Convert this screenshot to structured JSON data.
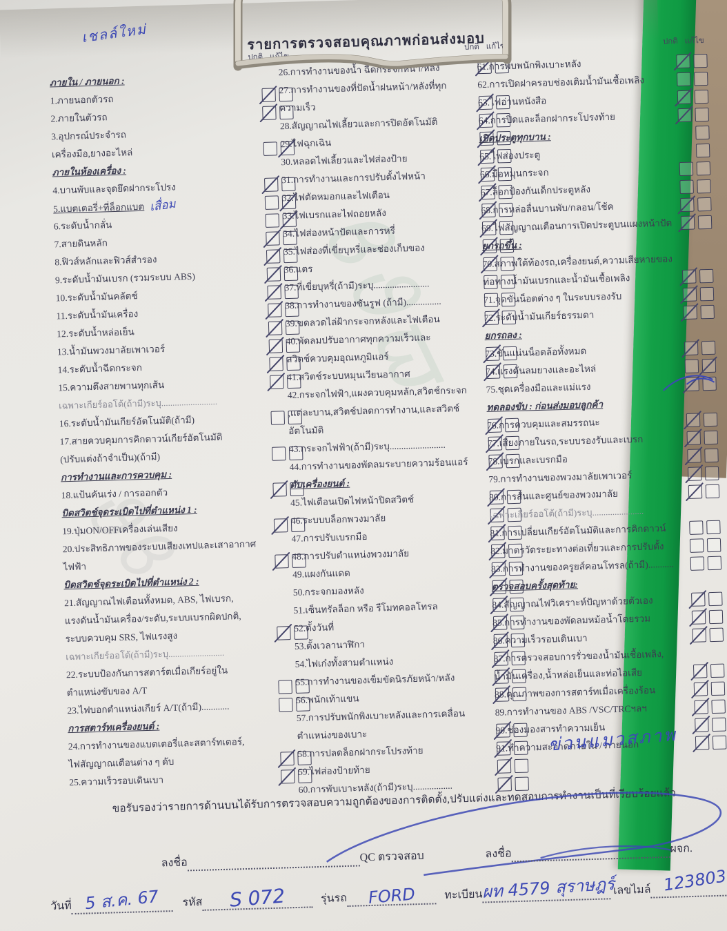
{
  "header": {
    "title": "รายการตรวจสอบคุณภาพก่อนส่งมอบ",
    "check_labels": {
      "normal": "ปกติ",
      "fix": "แก้ไข"
    }
  },
  "annotations": {
    "top_left": "เชลล์ใหม่",
    "item5_note": "เสื่อม",
    "right_note": "ข่วนแมวสภาพ"
  },
  "columns": [
    {
      "entries": [
        {
          "sec": "ภายใน / ภายนอก :"
        },
        {
          "lines": [
            "1.ภายนอกตัวรถ"
          ],
          "check": "n"
        },
        {
          "lines": [
            "2.ภายในตัวรถ"
          ],
          "check": "n"
        },
        {
          "lines": [
            "3.อุปกรณ์ประจำรถ",
            "เครื่องมือ,ยางอะไหล่"
          ],
          "check": "f"
        },
        {
          "sec": "ภายในห้องเครื่อง :"
        },
        {
          "lines": [
            "4.บานพับและจุดยึดฝากระโปรง"
          ],
          "check": "n"
        },
        {
          "lines": [
            "5.แบตเตอรี่+ที่ล็อกแบต"
          ],
          "check": "f",
          "u": true,
          "note": "เสื่อม"
        },
        {
          "lines": [
            "6.ระดับน้ำกลั่น"
          ],
          "check": "f"
        },
        {
          "lines": [
            "7.สายดินหลัก"
          ],
          "check": "n"
        },
        {
          "lines": [
            "8.ฟิวส์หลักและฟิวส์สำรอง"
          ],
          "check": "n"
        },
        {
          "lines": [
            "9.ระดับน้ำมันเบรก (รวมระบบ ABS)"
          ],
          "check": "n"
        },
        {
          "lines": [
            "10.ระดับน้ำมันคลัตช์"
          ],
          "check": "n"
        },
        {
          "lines": [
            "11.ระดับน้ำมันเครื่อง"
          ],
          "check": "n"
        },
        {
          "lines": [
            "12.ระดับน้ำหล่อเย็น"
          ],
          "check": "n"
        },
        {
          "lines": [
            "13.น้ำมันพวงมาลัยเพาเวอร์"
          ],
          "check": "n"
        },
        {
          "lines": [
            "14.ระดับน้ำฉีดกระจก"
          ],
          "check": "n"
        },
        {
          "lines": [
            "15.ความตึงสายพานทุกเส้น"
          ],
          "check": "n"
        },
        {
          "gray": "เฉพาะเกียร์ออโต้(ถ้ามี)ระบุ........................."
        },
        {
          "lines": [
            "16.ระดับน้ำมันเกียร์อัตโนมัติ(ถ้ามี)"
          ],
          "check": "e"
        },
        {
          "lines": [
            "17.สายควบคุมการคิกดาวน์เกียร์อัตโนมัติ",
            "(ปรับแต่งถ้าจำเป็น)(ถ้ามี)"
          ],
          "check": "e"
        },
        {
          "sec": "การทำงานและการควบคุม :"
        },
        {
          "lines": [
            "18.แป้นคันเร่ง / การออกตัว"
          ],
          "check": "n"
        },
        {
          "sec": "บิดสวิตช์จุดระเบิดไปที่ตำแหน่ง 1 :"
        },
        {
          "lines": [
            "19.ปุ่มON/OFFเครื่องเล่นเสียง"
          ],
          "check": "n"
        },
        {
          "lines": [
            "20.ประสิทธิภาพของระบบเสียงเทปและเสาอากาศ",
            "ไฟฟ้า"
          ],
          "check": "n"
        },
        {
          "sec": "บิดสวิตช์จุดระเบิดไปที่ตำแหน่ง 2 :"
        },
        {
          "lines": [
            "21.สัญญาณไฟเตือนทั้งหมด, ABS, ไฟเบรก,",
            "แรงดันน้ำมันเครื่อง/ระดับ,ระบบเบรกผิดปกติ,",
            "ระบบควบคุม SRS, ไฟแรงสูง"
          ],
          "check": "n"
        },
        {
          "gray": "เฉพาะเกียร์ออโต้(ถ้ามี)ระบุ........................."
        },
        {
          "lines": [
            "22.ระบบป้องกันการสตาร์ตเมื่อเกียร์อยู่ใน",
            "ตำแหน่งขับของ A/T"
          ],
          "check": "e"
        },
        {
          "lines": [
            "23.ไฟบอกตำแหน่งเกียร์ A/T(ถ้ามี)............"
          ],
          "check": "e"
        },
        {
          "sec": "การสตาร์ทเครื่องยนต์ :"
        },
        {
          "lines": [
            "24.การทำงานของแบตเตอรี่และสตาร์ทเตอร์,",
            "ไฟสัญญาณเตือนต่าง ๆ ดับ"
          ],
          "check": "n"
        },
        {
          "lines": [
            "25.ความเร็วรอบเดินเบา"
          ],
          "check": "n"
        }
      ]
    },
    {
      "entries": [
        {
          "lines": [
            "26.การทำงานของน้ำ ฉีดกระจกหน้า/หลัง"
          ],
          "check": "n"
        },
        {
          "lines": [
            "27.การทำงานของที่ปัดน้ำฝนหน้า/หลังที่ทุก",
            "ความเร็ว"
          ],
          "check": "n"
        },
        {
          "lines": [
            "28.สัญญาณไฟเลี้ยวและการปิดอัตโนมัติ"
          ],
          "check": "n"
        },
        {
          "lines": [
            "29.ไฟฉุกเฉิน"
          ],
          "check": "n"
        },
        {
          "lines": [
            "30.หลอดไฟเลี้ยวและไฟส่องป้าย"
          ],
          "check": "n"
        },
        {
          "lines": [
            "31.การทำงานและการปรับตั้งไฟหน้า"
          ],
          "check": "n"
        },
        {
          "lines": [
            "32.ไฟตัดหมอกและไฟเตือน"
          ],
          "check": "n"
        },
        {
          "lines": [
            "33.ไฟเบรกและไฟถอยหลัง"
          ],
          "check": "n"
        },
        {
          "lines": [
            "34.ไฟส่องหน้าปัดและการหรี่"
          ],
          "check": "n"
        },
        {
          "lines": [
            "35.ไฟส่องที่เขี่ยบุหรี่และช่องเก็บของ"
          ],
          "check": "n"
        },
        {
          "lines": [
            "36.แตร"
          ],
          "check": "n"
        },
        {
          "lines": [
            "37.ที่เขี่ยบุหรี่(ถ้ามี)ระบุ........................"
          ],
          "check": "e"
        },
        {
          "lines": [
            "38.การทำงานของซันรูฟ (ถ้ามี)..............."
          ],
          "check": "e"
        },
        {
          "lines": [
            "39.ขดลวดไล่ฝ้ากระจกหลังและไฟเตือน"
          ],
          "check": "n"
        },
        {
          "lines": [
            "40.พัดลมปรับอากาศทุกความเร็วและ",
            "สวิตช์ควบคุมอุณหภูมิแอร์"
          ],
          "check": "n"
        },
        {
          "lines": [
            "41.สวิตช์ระบบหมุนเวียนอากาศ"
          ],
          "check": "n"
        },
        {
          "lines": [
            "42.กระจกไฟฟ้า,แผงควบคุมหลัก,สวิตช์กระจก",
            ",แต่ละบาน,สวิตช์ปลดการทำงาน,และสวิตช์",
            "อัตโนมัติ"
          ],
          "check": "n"
        },
        {
          "lines": [
            "43.กระจกไฟฟ้า(ถ้ามี)ระบุ........................"
          ],
          "check": "n"
        },
        {
          "lines": [
            "44.การทำงานของพัดลมระบายความร้อนแอร์"
          ],
          "check": "n"
        },
        {
          "sec": "ดับเครื่องยนต์ :"
        },
        {
          "lines": [
            "45.ไฟเตือนเปิดไฟหน้าปิดสวิตช์"
          ],
          "check": "n"
        },
        {
          "lines": [
            "46.ระบบบล็อกพวงมาลัย"
          ],
          "check": "n"
        },
        {
          "lines": [
            "47.การปรับเบรกมือ"
          ],
          "check": "n"
        },
        {
          "lines": [
            "48.การปรับตำแหน่งพวงมาลัย"
          ],
          "check": "n"
        },
        {
          "lines": [
            "49.แผงกันแดด"
          ],
          "check": "n"
        },
        {
          "lines": [
            "50.กระจกมองหลัง"
          ],
          "check": "n"
        },
        {
          "lines": [
            "51.เซ็นทรัลล็อก หรือ รีโมทคอลโทรล"
          ],
          "check": "n"
        },
        {
          "lines": [
            "52.ตั้งวันที่"
          ],
          "check": "n"
        },
        {
          "lines": [
            "53.ตั้งเวลานาฬิกา"
          ],
          "check": "n"
        },
        {
          "lines": [
            "54.ไฟเก๋งทั้งสามตำแหน่ง"
          ],
          "check": "n"
        },
        {
          "lines": [
            "55.การทำงานของเข็มขัดนิรภัยหน้า/หลัง"
          ],
          "check": "n"
        },
        {
          "lines": [
            "56.พนักเท้าแขน"
          ],
          "check": "n"
        },
        {
          "lines": [
            "57.การปรับพนักพิงเบาะหลังและการเคลื่อน",
            "ตำแหน่งของเบาะ"
          ],
          "check": "n"
        },
        {
          "lines": [
            "58.การปลดล็อกฝากระโปรงท้าย"
          ],
          "check": "n"
        },
        {
          "lines": [
            "59.ไฟส่องป้ายท้าย"
          ],
          "check": "n"
        },
        {
          "lines": [
            "60.การพับเบาะหลัง(ถ้ามี)ระบุ................."
          ],
          "check": "n"
        }
      ]
    },
    {
      "entries": [
        {
          "lines": [
            "61.การพับพนักพิงเบาะหลัง"
          ],
          "check": "n"
        },
        {
          "lines": [
            "62.การเปิดฝาครอบช่องเติมน้ำมันเชื้อเพลิง"
          ],
          "check": "e"
        },
        {
          "lines": [
            "63.ไฟอ่านหนังสือ"
          ],
          "check": "n"
        },
        {
          "lines": [
            "64.การปิดและล็อกฝากระโปรงท้าย"
          ],
          "check": "n"
        },
        {
          "sec": "เปิดประตูทุกบาน :",
          "check": "s"
        },
        {
          "lines": [
            "65.ไฟส่องประตู"
          ],
          "check": "s"
        },
        {
          "lines": [
            "66.มือหมุนกระจก"
          ],
          "check": "e"
        },
        {
          "lines": [
            "67.ล็อกป้องกันเด็กประตูหลัง"
          ],
          "check": "e"
        },
        {
          "lines": [
            "68.การหล่อลื่นบานพับ/กลอน/โช้ค"
          ],
          "check": "n"
        },
        {
          "lines": [
            "69.ไฟสัญญาณเตือนการเปิดประตูบนแผงหน้าปัด"
          ],
          "check": "n"
        },
        {
          "sec": "ยกรถขึ้น :"
        },
        {
          "lines": [
            "70.สภาพใต้ท้องรถ,เครื่องยนต์,ความเสียหายของ",
            "ท่อทางน้ำมันเบรกและน้ำมันเชื้อเพลิง"
          ],
          "check": "n"
        },
        {
          "lines": [
            "71.จุดขันน็อตต่าง ๆ ในระบบรองรับ"
          ],
          "check": "n"
        },
        {
          "lines": [
            "72.ระดับน้ำมันเกียร์ธรรมดา"
          ],
          "check": "n"
        },
        {
          "sec": "ยกรถลง :"
        },
        {
          "lines": [
            "73.ขันแน่นน็อตล้อทั้งหมด"
          ],
          "check": "n"
        },
        {
          "lines": [
            "74.แรงดันลมยางและอะไหล่"
          ],
          "check": "f"
        },
        {
          "lines": [
            "75.ชุดเครื่องมือและแม่แรง"
          ],
          "check": "n",
          "scribble": true
        },
        {
          "sec": "ทดลองขับ : ก่อนส่งมอบลูกค้า"
        },
        {
          "lines": [
            "76.การควบคุมและสมรรถนะ"
          ],
          "check": "n"
        },
        {
          "lines": [
            "77.เสียงภายในรถ,ระบบรองรับและเบรก"
          ],
          "check": "n"
        },
        {
          "lines": [
            "78.เบรกและเบรกมือ"
          ],
          "check": "n"
        },
        {
          "lines": [
            "79.การทำงานของพวงมาลัยเพาเวอร์"
          ],
          "check": "n"
        },
        {
          "lines": [
            "80.การสั่นและศูนย์ของพวงมาลัย"
          ],
          "check": "n"
        },
        {
          "gray": "เฉพาะเกียร์ออโต้(ถ้ามี)ระบุ......................."
        },
        {
          "lines": [
            "81.การเปลี่ยนเกียร์อัตโนมัติและการคิกดาวน์"
          ],
          "check": "e"
        },
        {
          "lines": [
            "82.มาตรวัดระยะทางต่อเที่ยวและการปรับตั้ง"
          ],
          "check": "e"
        },
        {
          "lines": [
            "83.การทำงานของครูยส์คอนโทรล(ถ้ามี)..........."
          ],
          "check": "e"
        },
        {
          "sec": "ตรวจสอบครั้งสุดท้าย:"
        },
        {
          "lines": [
            "84.สัญญาณไฟวิเคราะห์ปัญหาด้วยตัวเอง"
          ],
          "check": "n"
        },
        {
          "lines": [
            "85.การทำงานของพัดลมหม้อน้ำโดยรวม"
          ],
          "check": "n"
        },
        {
          "lines": [
            "86.ความเร็วรอบเดินเบา"
          ],
          "check": "n"
        },
        {
          "lines": [
            "87.การตรวจสอบการรั่วของน้ำมันเชื้อเพลิง,",
            "น้ำมันเครื่อง,น้ำหล่อเย็นและท่อไอเสีย"
          ],
          "check": "n"
        },
        {
          "lines": [
            "88.คุณภาพของการสตาร์ทเมื่อเครื่องร้อน"
          ],
          "check": "n"
        },
        {
          "lines": [
            "89.การทำงานของ ABS /VSC/TRCฯลฯ"
          ],
          "check": "n"
        },
        {
          "lines": [
            "90.ช่องมองสารทำความเย็น"
          ],
          "check": "n"
        },
        {
          "lines": [
            "91.ทำความสะอาดภายใน / ภายนอก"
          ],
          "check": "n"
        }
      ]
    }
  ],
  "footer": {
    "certification": "ขอรับรองว่ารายการด้านบนได้รับการตรวจสอบความถูกต้องของการติดตั้ง,ปรับแต่งและทดสอบการทำงานเป็นที่เรียบร้อยแล้ว",
    "sign_label": "ลงชื่อ",
    "qc_label": "QC ตรวจสอบ",
    "manager_label": "ผจก.",
    "date_label": "วันที่",
    "date_value": "5 ส.ค. 67",
    "code_label": "รหัส",
    "code_value": "S 072",
    "model_label": "รุ่นรถ",
    "model_value": "FORD",
    "plate_label": "ทะเบียน",
    "plate_value": "ผท 4579 สุราษฎร์",
    "mileage_label": "เลขไมล์",
    "mileage_value": "123803"
  }
}
